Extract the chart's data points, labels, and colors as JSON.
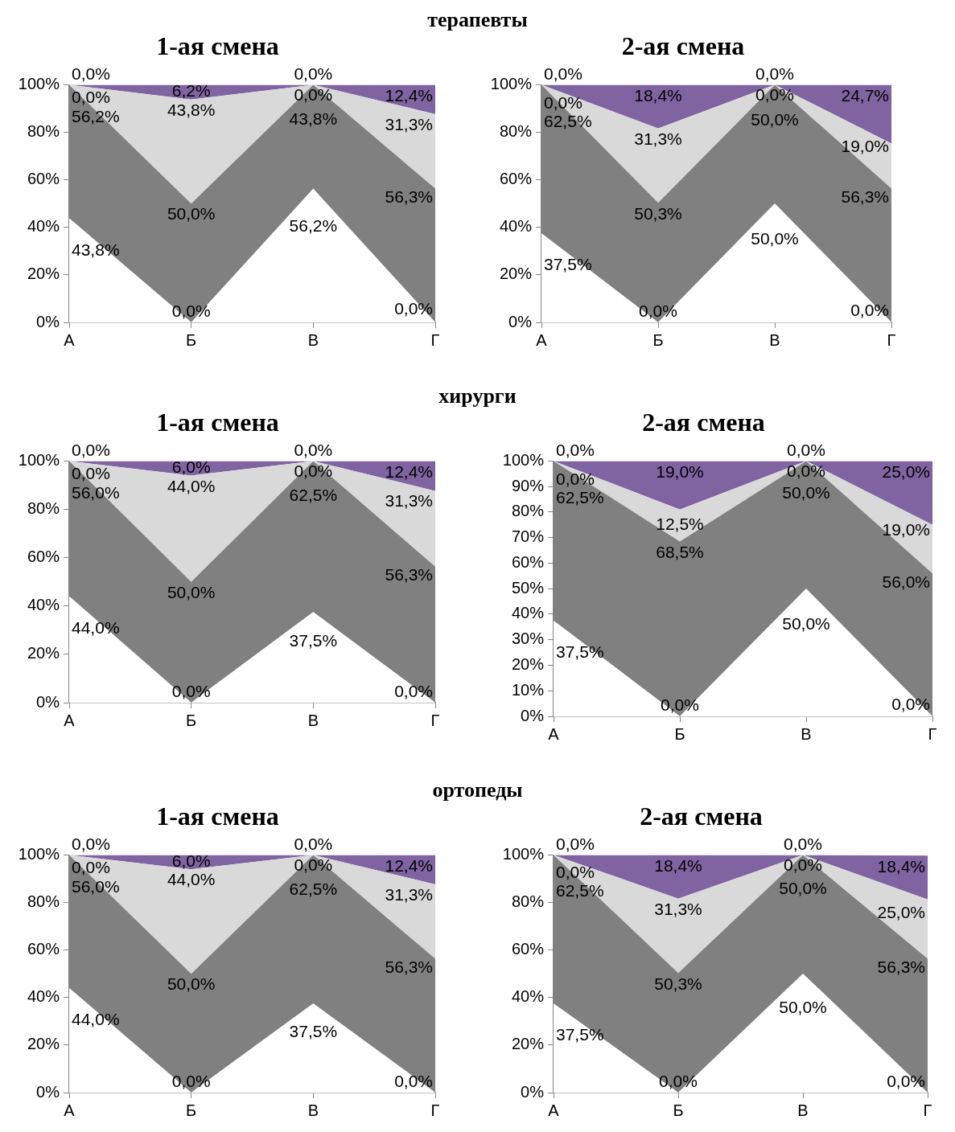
{
  "chart_data": [
    {
      "type": "other",
      "title": "терапевты"
    },
    {
      "type": "area",
      "title": "1-ая смена",
      "categories": [
        "А",
        "Б",
        "В",
        "Г"
      ],
      "stacked": true,
      "ylim": [
        0,
        100
      ],
      "yticks": [
        {
          "value": 0,
          "label": "0%"
        },
        {
          "value": 20,
          "label": "20%"
        },
        {
          "value": 40,
          "label": "40%"
        },
        {
          "value": 60,
          "label": "60%"
        },
        {
          "value": 80,
          "label": "80%"
        },
        {
          "value": 100,
          "label": "100%"
        }
      ],
      "series": [
        {
          "color": "#ffffff",
          "values": [
            43.8,
            0.0,
            56.2,
            0.0
          ],
          "value_labels": [
            "43,8%",
            "0,0%",
            "56,2%",
            "0,0%"
          ]
        },
        {
          "color": "#808080",
          "values": [
            56.2,
            50.0,
            43.8,
            56.3
          ],
          "value_labels": [
            "56,2%",
            "50,0%",
            "43,8%",
            "56,3%"
          ]
        },
        {
          "color": "#d9d9d9",
          "values": [
            0.0,
            43.8,
            0.0,
            31.3
          ],
          "value_labels": [
            "0,0%",
            "43,8%",
            "0,0%",
            "31,3%"
          ]
        },
        {
          "color": "#8064a2",
          "values": [
            0.0,
            6.2,
            0.0,
            12.4
          ],
          "value_labels": [
            "0,0%",
            "6,2%",
            "0,0%",
            "12,4%"
          ]
        }
      ]
    },
    {
      "type": "area",
      "title": "2-ая смена",
      "categories": [
        "А",
        "Б",
        "В",
        "Г"
      ],
      "stacked": true,
      "ylim": [
        0,
        100
      ],
      "yticks": [
        {
          "value": 0,
          "label": "0%"
        },
        {
          "value": 20,
          "label": "20%"
        },
        {
          "value": 40,
          "label": "40%"
        },
        {
          "value": 60,
          "label": "60%"
        },
        {
          "value": 80,
          "label": "80%"
        },
        {
          "value": 100,
          "label": "100%"
        }
      ],
      "series": [
        {
          "color": "#ffffff",
          "values": [
            37.5,
            0.0,
            50.0,
            0.0
          ],
          "value_labels": [
            "37,5%",
            "0,0%",
            "50,0%",
            "0,0%"
          ]
        },
        {
          "color": "#808080",
          "values": [
            62.5,
            50.3,
            50.0,
            56.3
          ],
          "value_labels": [
            "62,5%",
            "50,3%",
            "50,0%",
            "56,3%"
          ]
        },
        {
          "color": "#d9d9d9",
          "values": [
            0.0,
            31.3,
            0.0,
            19.0
          ],
          "value_labels": [
            "0,0%",
            "31,3%",
            "0,0%",
            "19,0%"
          ]
        },
        {
          "color": "#8064a2",
          "values": [
            0.0,
            18.4,
            0.0,
            24.7
          ],
          "value_labels": [
            "0,0%",
            "18,4%",
            "0,0%",
            "24,7%"
          ]
        }
      ]
    },
    {
      "type": "other",
      "title": "хирурги"
    },
    {
      "type": "area",
      "title": "1-ая смена",
      "categories": [
        "А",
        "Б",
        "В",
        "Г"
      ],
      "stacked": true,
      "ylim": [
        0,
        100
      ],
      "yticks": [
        {
          "value": 0,
          "label": "0%"
        },
        {
          "value": 20,
          "label": "20%"
        },
        {
          "value": 40,
          "label": "40%"
        },
        {
          "value": 60,
          "label": "60%"
        },
        {
          "value": 80,
          "label": "80%"
        },
        {
          "value": 100,
          "label": "100%"
        }
      ],
      "series": [
        {
          "color": "#ffffff",
          "values": [
            44.0,
            0.0,
            37.5,
            0.0
          ],
          "value_labels": [
            "44,0%",
            "0,0%",
            "37,5%",
            "0,0%"
          ]
        },
        {
          "color": "#808080",
          "values": [
            56.0,
            50.0,
            62.5,
            56.3
          ],
          "value_labels": [
            "56,0%",
            "50,0%",
            "62,5%",
            "56,3%"
          ]
        },
        {
          "color": "#d9d9d9",
          "values": [
            0.0,
            44.0,
            0.0,
            31.3
          ],
          "value_labels": [
            "0,0%",
            "44,0%",
            "0,0%",
            "31,3%"
          ]
        },
        {
          "color": "#8064a2",
          "values": [
            0.0,
            6.0,
            0.0,
            12.4
          ],
          "value_labels": [
            "0,0%",
            "6,0%",
            "0,0%",
            "12,4%"
          ]
        }
      ]
    },
    {
      "type": "area",
      "title": "2-ая смена",
      "categories": [
        "А",
        "Б",
        "В",
        "Г"
      ],
      "stacked": true,
      "ylim": [
        0,
        100
      ],
      "yticks": [
        {
          "value": 0,
          "label": "0%"
        },
        {
          "value": 10,
          "label": "10%"
        },
        {
          "value": 20,
          "label": "20%"
        },
        {
          "value": 30,
          "label": "30%"
        },
        {
          "value": 40,
          "label": "40%"
        },
        {
          "value": 50,
          "label": "50%"
        },
        {
          "value": 60,
          "label": "60%"
        },
        {
          "value": 70,
          "label": "70%"
        },
        {
          "value": 80,
          "label": "80%"
        },
        {
          "value": 90,
          "label": "90%"
        },
        {
          "value": 100,
          "label": "100%"
        }
      ],
      "series": [
        {
          "color": "#ffffff",
          "values": [
            37.5,
            0.0,
            50.0,
            0.0
          ],
          "value_labels": [
            "37,5%",
            "0,0%",
            "50,0%",
            "0,0%"
          ]
        },
        {
          "color": "#808080",
          "values": [
            62.5,
            68.5,
            50.0,
            56.0
          ],
          "value_labels": [
            "62,5%",
            "68,5%",
            "50,0%",
            "56,0%"
          ]
        },
        {
          "color": "#d9d9d9",
          "values": [
            0.0,
            12.5,
            0.0,
            19.0
          ],
          "value_labels": [
            "0,0%",
            "12,5%",
            "0,0%",
            "19,0%"
          ]
        },
        {
          "color": "#8064a2",
          "values": [
            0.0,
            19.0,
            0.0,
            25.0
          ],
          "value_labels": [
            "0,0%",
            "19,0%",
            "0,0%",
            "25,0%"
          ]
        }
      ]
    },
    {
      "type": "other",
      "title": "ортопеды"
    },
    {
      "type": "area",
      "title": "1-ая смена",
      "categories": [
        "А",
        "Б",
        "В",
        "Г"
      ],
      "stacked": true,
      "ylim": [
        0,
        100
      ],
      "yticks": [
        {
          "value": 0,
          "label": "0%"
        },
        {
          "value": 20,
          "label": "20%"
        },
        {
          "value": 40,
          "label": "40%"
        },
        {
          "value": 60,
          "label": "60%"
        },
        {
          "value": 80,
          "label": "80%"
        },
        {
          "value": 100,
          "label": "100%"
        }
      ],
      "series": [
        {
          "color": "#ffffff",
          "values": [
            44.0,
            0.0,
            37.5,
            0.0
          ],
          "value_labels": [
            "44,0%",
            "0,0%",
            "37,5%",
            "0,0%"
          ]
        },
        {
          "color": "#808080",
          "values": [
            56.0,
            50.0,
            62.5,
            56.3
          ],
          "value_labels": [
            "56,0%",
            "50,0%",
            "62,5%",
            "56,3%"
          ]
        },
        {
          "color": "#d9d9d9",
          "values": [
            0.0,
            44.0,
            0.0,
            31.3
          ],
          "value_labels": [
            "0,0%",
            "44,0%",
            "0,0%",
            "31,3%"
          ]
        },
        {
          "color": "#8064a2",
          "values": [
            0.0,
            6.0,
            0.0,
            12.4
          ],
          "value_labels": [
            "0,0%",
            "6,0%",
            "0,0%",
            "12,4%"
          ]
        }
      ]
    },
    {
      "type": "area",
      "title": "2-ая смена",
      "categories": [
        "А",
        "Б",
        "В",
        "Г"
      ],
      "stacked": true,
      "ylim": [
        0,
        100
      ],
      "yticks": [
        {
          "value": 0,
          "label": "0%"
        },
        {
          "value": 20,
          "label": "20%"
        },
        {
          "value": 40,
          "label": "40%"
        },
        {
          "value": 60,
          "label": "60%"
        },
        {
          "value": 80,
          "label": "80%"
        },
        {
          "value": 100,
          "label": "100%"
        }
      ],
      "series": [
        {
          "color": "#ffffff",
          "values": [
            37.5,
            0.0,
            50.0,
            0.0
          ],
          "value_labels": [
            "37,5%",
            "0,0%",
            "50,0%",
            "0,0%"
          ]
        },
        {
          "color": "#808080",
          "values": [
            62.5,
            50.3,
            50.0,
            56.3
          ],
          "value_labels": [
            "62,5%",
            "50,3%",
            "50,0%",
            "56,3%"
          ]
        },
        {
          "color": "#d9d9d9",
          "values": [
            0.0,
            31.3,
            0.0,
            25.0
          ],
          "value_labels": [
            "0,0%",
            "31,3%",
            "0,0%",
            "25,0%"
          ]
        },
        {
          "color": "#8064a2",
          "values": [
            0.0,
            18.4,
            0.0,
            18.4
          ],
          "value_labels": [
            "0,0%",
            "18,4%",
            "0,0%",
            "18,4%"
          ]
        }
      ]
    }
  ]
}
